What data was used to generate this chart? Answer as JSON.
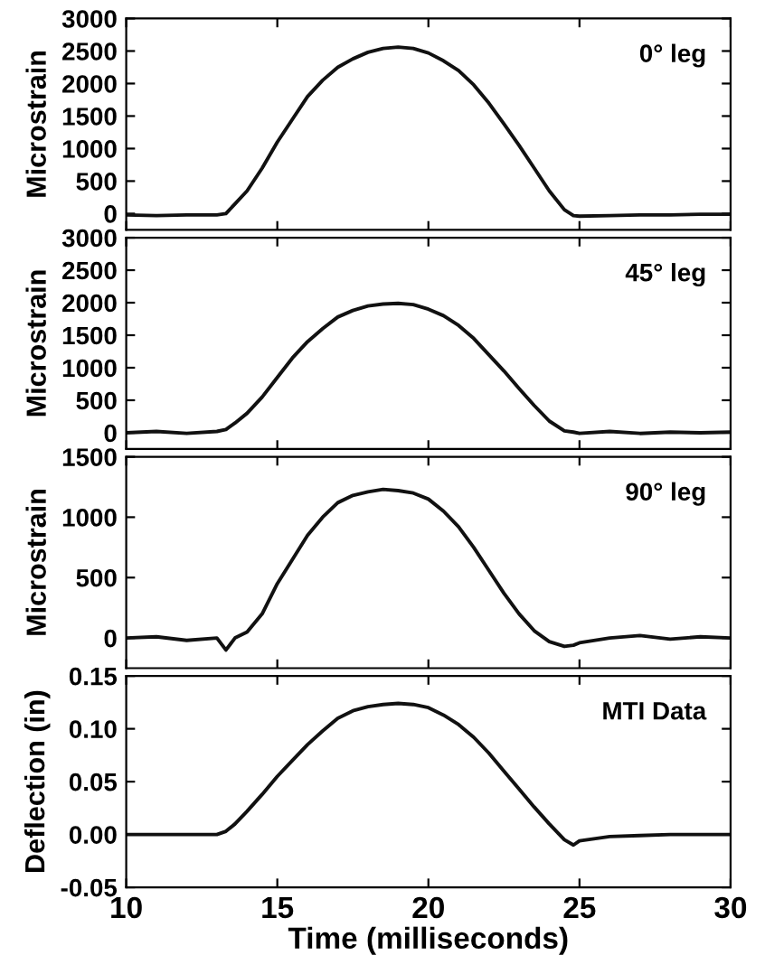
{
  "chart_data": [
    {
      "type": "line",
      "ylabel": "Microstrain",
      "annotations": [
        "0° leg"
      ],
      "xlim": [
        10,
        30
      ],
      "xticks": [
        10,
        15,
        20,
        25,
        30
      ],
      "ylim": [
        -250,
        3000
      ],
      "yticks": [
        0,
        500,
        1000,
        1500,
        2000,
        2500,
        3000
      ],
      "tick_labels": "y",
      "x": [
        10,
        11,
        12,
        13,
        13.3,
        13.6,
        14,
        14.5,
        15,
        15.5,
        16,
        16.5,
        17,
        17.5,
        18,
        18.5,
        19,
        19.5,
        20,
        20.5,
        21,
        21.5,
        22,
        22.5,
        23,
        23.5,
        24,
        24.5,
        24.8,
        25,
        26,
        27,
        28,
        29,
        30
      ],
      "series": [
        {
          "color": "#111111",
          "values": [
            -20,
            -30,
            -20,
            -20,
            0,
            150,
            350,
            700,
            1100,
            1450,
            1800,
            2050,
            2250,
            2380,
            2480,
            2540,
            2560,
            2540,
            2470,
            2350,
            2200,
            1980,
            1700,
            1380,
            1050,
            700,
            350,
            60,
            -30,
            -40,
            -30,
            -20,
            -20,
            -10,
            -10
          ]
        }
      ]
    },
    {
      "type": "line",
      "ylabel": "Microstrain",
      "annotations": [
        "45° leg"
      ],
      "xlim": [
        10,
        30
      ],
      "xticks": [
        10,
        15,
        20,
        25,
        30
      ],
      "ylim": [
        -250,
        3000
      ],
      "yticks": [
        0,
        500,
        1000,
        1500,
        2000,
        2500,
        3000
      ],
      "tick_labels": "y",
      "x": [
        10,
        11,
        12,
        13,
        13.3,
        13.6,
        14,
        14.5,
        15,
        15.5,
        16,
        16.5,
        17,
        17.5,
        18,
        18.5,
        19,
        19.5,
        20,
        20.5,
        21,
        21.5,
        22,
        22.5,
        23,
        23.5,
        24,
        24.5,
        24.8,
        25,
        26,
        27,
        28,
        29,
        30
      ],
      "series": [
        {
          "color": "#111111",
          "values": [
            0,
            20,
            -10,
            20,
            50,
            150,
            300,
            550,
            850,
            1150,
            1400,
            1600,
            1780,
            1880,
            1950,
            1980,
            1990,
            1970,
            1900,
            1800,
            1650,
            1450,
            1200,
            950,
            680,
            420,
            180,
            30,
            10,
            -10,
            20,
            -10,
            10,
            0,
            10
          ]
        }
      ]
    },
    {
      "type": "line",
      "ylabel": "Microstrain",
      "annotations": [
        "90° leg"
      ],
      "xlim": [
        10,
        30
      ],
      "xticks": [
        10,
        15,
        20,
        25,
        30
      ],
      "ylim": [
        -250,
        1500
      ],
      "yticks": [
        0,
        500,
        1000,
        1500
      ],
      "tick_labels": "y",
      "x": [
        10,
        11,
        12,
        13,
        13.3,
        13.6,
        14,
        14.5,
        15,
        15.5,
        16,
        16.5,
        17,
        17.5,
        18,
        18.5,
        19,
        19.5,
        20,
        20.5,
        21,
        21.5,
        22,
        22.5,
        23,
        23.5,
        24,
        24.5,
        24.8,
        25,
        26,
        27,
        28,
        29,
        30
      ],
      "series": [
        {
          "color": "#111111",
          "values": [
            0,
            10,
            -20,
            0,
            -100,
            0,
            50,
            200,
            450,
            650,
            850,
            1000,
            1120,
            1180,
            1210,
            1230,
            1220,
            1200,
            1150,
            1050,
            920,
            750,
            560,
            370,
            200,
            60,
            -30,
            -70,
            -60,
            -40,
            0,
            20,
            -10,
            10,
            0
          ]
        }
      ]
    },
    {
      "type": "line",
      "ylabel": "Deflection (in)",
      "xlabel": "Time (milliseconds)",
      "annotations": [
        "MTI Data"
      ],
      "xlim": [
        10,
        30
      ],
      "xticks": [
        10,
        15,
        20,
        25,
        30
      ],
      "ylim": [
        -0.05,
        0.15
      ],
      "yticks": [
        {
          "value": -0.05,
          "label": "-0.05"
        },
        {
          "value": 0,
          "label": "0.00"
        },
        {
          "value": 0.05,
          "label": "0.05"
        },
        {
          "value": 0.1,
          "label": "0.10"
        },
        {
          "value": 0.15,
          "label": "0.15"
        }
      ],
      "x": [
        10,
        11,
        12,
        13,
        13.3,
        13.6,
        14,
        14.5,
        15,
        15.5,
        16,
        16.5,
        17,
        17.5,
        18,
        18.5,
        19,
        19.5,
        20,
        20.5,
        21,
        21.5,
        22,
        22.5,
        23,
        23.5,
        24,
        24.5,
        24.8,
        25,
        26,
        27,
        28,
        29,
        30
      ],
      "series": [
        {
          "color": "#111111",
          "values": [
            0,
            0,
            0,
            0,
            0.003,
            0.01,
            0.022,
            0.038,
            0.055,
            0.07,
            0.085,
            0.098,
            0.11,
            0.117,
            0.121,
            0.123,
            0.124,
            0.123,
            0.12,
            0.113,
            0.104,
            0.092,
            0.077,
            0.06,
            0.043,
            0.026,
            0.01,
            -0.005,
            -0.01,
            -0.006,
            -0.002,
            -0.001,
            0,
            0,
            0
          ]
        }
      ]
    }
  ]
}
